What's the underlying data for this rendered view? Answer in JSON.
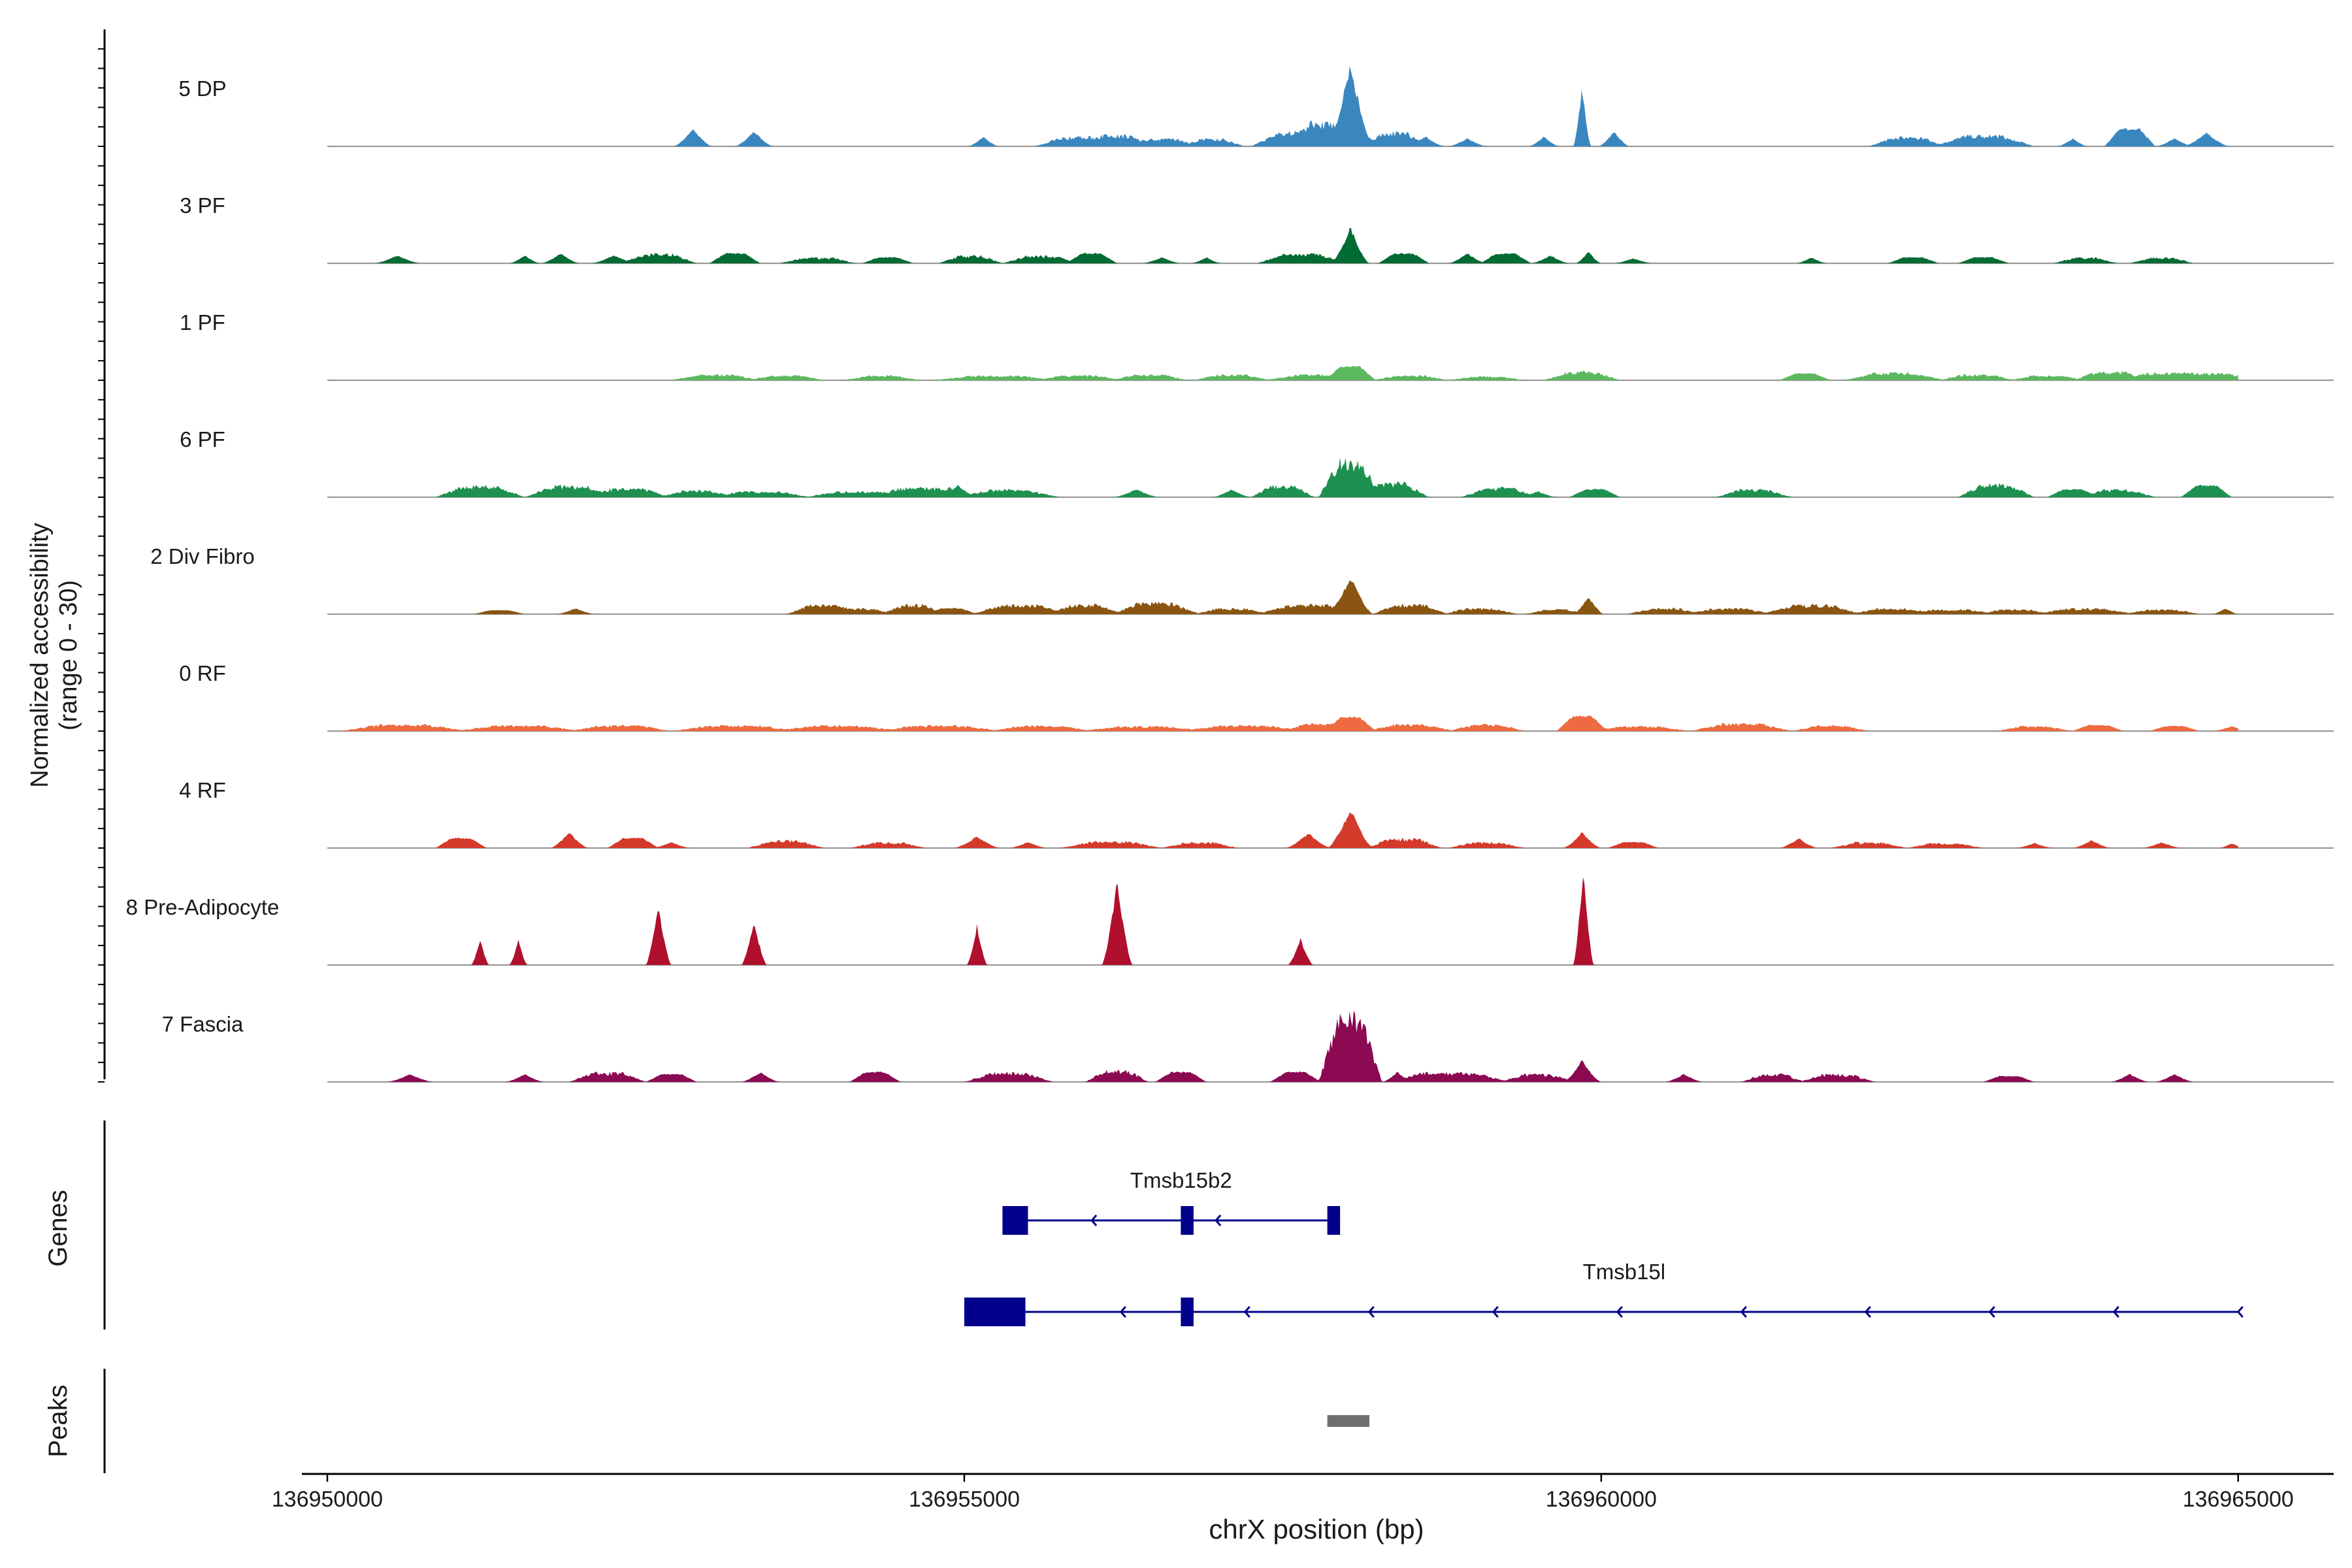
{
  "chart_data": {
    "type": "area",
    "subtype": "genome-coverage-track",
    "title": "",
    "ylabel_lines": [
      "Normalized accessibility",
      "(range 0 - 30)"
    ],
    "xlabel": "chrX position (bp)",
    "xlim": [
      136949800,
      136965750
    ],
    "xticks": [
      136950000,
      136955000,
      136960000,
      136965000
    ],
    "xtick_labels": [
      "136950000",
      "136955000",
      "136960000",
      "136965000"
    ],
    "ylim": [
      0,
      30
    ],
    "baseline_color": "#9a9a9a",
    "tracks": [
      {
        "name": "5 DP",
        "color": "#3a87c0",
        "peaks": [
          [
            136952870,
            0.15,
            18
          ],
          [
            136953350,
            0.15,
            15
          ],
          [
            136955150,
            0.12,
            10
          ],
          [
            136955900,
            0.35,
            10
          ],
          [
            136956200,
            0.3,
            12
          ],
          [
            136956550,
            0.3,
            8
          ],
          [
            136956950,
            0.25,
            8
          ],
          [
            136957600,
            0.35,
            15
          ],
          [
            136957900,
            0.12,
            12
          ],
          [
            136958030,
            0.18,
            85
          ],
          [
            136957870,
            0.4,
            25
          ],
          [
            136958380,
            0.25,
            15
          ],
          [
            136958620,
            0.15,
            10
          ],
          [
            136958950,
            0.15,
            8
          ],
          [
            136959550,
            0.12,
            10
          ],
          [
            136959850,
            0.07,
            60
          ],
          [
            136960100,
            0.12,
            15
          ],
          [
            136962400,
            0.3,
            10
          ],
          [
            136963000,
            0.4,
            12
          ],
          [
            136963700,
            0.12,
            8
          ],
          [
            136964150,
            0.2,
            18
          ],
          [
            136964500,
            0.15,
            8
          ],
          [
            136964750,
            0.18,
            14
          ],
          [
            136965150,
            0.12,
            6
          ]
        ]
      },
      {
        "name": "3 PF",
        "color": "#006b33",
        "peaks": [
          [
            136950550,
            0.18,
            8
          ],
          [
            136951550,
            0.12,
            8
          ],
          [
            136951830,
            0.15,
            10
          ],
          [
            136952250,
            0.18,
            8
          ],
          [
            136952600,
            0.3,
            10
          ],
          [
            136953200,
            0.2,
            10
          ],
          [
            136953850,
            0.3,
            6
          ],
          [
            136954400,
            0.2,
            6
          ],
          [
            136955050,
            0.25,
            8
          ],
          [
            136955600,
            0.3,
            8
          ],
          [
            136956000,
            0.2,
            10
          ],
          [
            136956550,
            0.15,
            6
          ],
          [
            136956900,
            0.12,
            6
          ],
          [
            136957650,
            0.35,
            10
          ],
          [
            136958030,
            0.15,
            37
          ],
          [
            136958450,
            0.2,
            10
          ],
          [
            136958950,
            0.15,
            10
          ],
          [
            136959250,
            0.2,
            10
          ],
          [
            136959600,
            0.15,
            8
          ],
          [
            136959900,
            0.1,
            12
          ],
          [
            136960250,
            0.15,
            5
          ],
          [
            136961650,
            0.12,
            6
          ],
          [
            136962450,
            0.2,
            6
          ],
          [
            136963000,
            0.2,
            6
          ],
          [
            136963800,
            0.25,
            6
          ],
          [
            136964400,
            0.25,
            6
          ]
        ]
      },
      {
        "name": "1 PF",
        "color": "#5cb85f",
        "peaks": [
          [
            136953050,
            0.35,
            6
          ],
          [
            136953600,
            0.3,
            5
          ],
          [
            136954350,
            0.3,
            5
          ],
          [
            136955250,
            0.5,
            5
          ],
          [
            136955900,
            0.35,
            5
          ],
          [
            136956450,
            0.3,
            6
          ],
          [
            136957100,
            0.3,
            6
          ],
          [
            136957800,
            0.45,
            6
          ],
          [
            136958030,
            0.2,
            14
          ],
          [
            136958500,
            0.3,
            5
          ],
          [
            136959100,
            0.3,
            4
          ],
          [
            136959850,
            0.3,
            9
          ],
          [
            136961600,
            0.2,
            7
          ],
          [
            136962300,
            0.4,
            8
          ],
          [
            136962950,
            0.3,
            6
          ],
          [
            136963500,
            0.3,
            5
          ],
          [
            136964000,
            0.3,
            9
          ],
          [
            136964600,
            0.7,
            8
          ]
        ]
      },
      {
        "name": "6 PF",
        "color": "#1e9150",
        "peaks": [
          [
            136951200,
            0.35,
            12
          ],
          [
            136951900,
            0.35,
            12
          ],
          [
            136952350,
            0.35,
            9
          ],
          [
            136952900,
            0.3,
            7
          ],
          [
            136953400,
            0.4,
            6
          ],
          [
            136954150,
            0.4,
            6
          ],
          [
            136954700,
            0.5,
            10
          ],
          [
            136954950,
            0.15,
            12
          ],
          [
            136955350,
            0.4,
            8
          ],
          [
            136956350,
            0.18,
            8
          ],
          [
            136957100,
            0.15,
            8
          ],
          [
            136957500,
            0.25,
            12
          ],
          [
            136958030,
            0.25,
            38
          ],
          [
            136958350,
            0.3,
            15
          ],
          [
            136959200,
            0.3,
            10
          ],
          [
            136959500,
            0.15,
            6
          ],
          [
            136959950,
            0.2,
            8
          ],
          [
            136961200,
            0.3,
            8
          ],
          [
            136963100,
            0.3,
            14
          ],
          [
            136963700,
            0.2,
            8
          ],
          [
            136964050,
            0.3,
            8
          ],
          [
            136964750,
            0.2,
            12
          ]
        ]
      },
      {
        "name": "2 Div Fibro",
        "color": "#8a5510",
        "peaks": [
          [
            136951350,
            0.2,
            4
          ],
          [
            136951950,
            0.15,
            6
          ],
          [
            136953900,
            0.3,
            10
          ],
          [
            136954200,
            0.25,
            6
          ],
          [
            136954600,
            0.25,
            10
          ],
          [
            136954900,
            0.2,
            6
          ],
          [
            136955450,
            0.4,
            10
          ],
          [
            136955950,
            0.3,
            10
          ],
          [
            136956500,
            0.35,
            12
          ],
          [
            136957100,
            0.3,
            6
          ],
          [
            136957700,
            0.4,
            10
          ],
          [
            136958030,
            0.18,
            38
          ],
          [
            136958500,
            0.3,
            10
          ],
          [
            136959050,
            0.3,
            6
          ],
          [
            136959650,
            0.25,
            5
          ],
          [
            136959900,
            0.12,
            18
          ],
          [
            136960500,
            0.3,
            6
          ],
          [
            136961000,
            0.35,
            6
          ],
          [
            136961650,
            0.4,
            10
          ],
          [
            136962300,
            0.35,
            6
          ],
          [
            136962750,
            0.35,
            5
          ],
          [
            136963250,
            0.3,
            5
          ],
          [
            136963800,
            0.4,
            6
          ],
          [
            136964400,
            0.3,
            5
          ],
          [
            136964900,
            0.1,
            6
          ]
        ]
      },
      {
        "name": "0 RF",
        "color": "#ee6a40",
        "peaks": [
          [
            136950600,
            0.5,
            7
          ],
          [
            136951500,
            0.5,
            6
          ],
          [
            136952300,
            0.4,
            6
          ],
          [
            136953200,
            0.5,
            6
          ],
          [
            136954000,
            0.5,
            6
          ],
          [
            136954800,
            0.5,
            6
          ],
          [
            136955600,
            0.4,
            6
          ],
          [
            136956400,
            0.5,
            5
          ],
          [
            136957200,
            0.5,
            6
          ],
          [
            136957800,
            0.3,
            8
          ],
          [
            136958030,
            0.2,
            14
          ],
          [
            136958500,
            0.35,
            7
          ],
          [
            136959100,
            0.3,
            7
          ],
          [
            136959850,
            0.2,
            15
          ],
          [
            136960300,
            0.4,
            5
          ],
          [
            136961100,
            0.4,
            8
          ],
          [
            136961800,
            0.3,
            6
          ],
          [
            136963400,
            0.3,
            5
          ],
          [
            136963900,
            0.2,
            6
          ],
          [
            136964500,
            0.2,
            5
          ],
          [
            136964950,
            0.15,
            5
          ]
        ]
      },
      {
        "name": "4 RF",
        "color": "#d43a2a",
        "peaks": [
          [
            136951050,
            0.2,
            10
          ],
          [
            136951900,
            0.15,
            16
          ],
          [
            136952400,
            0.2,
            10
          ],
          [
            136952700,
            0.15,
            6
          ],
          [
            136953600,
            0.3,
            8
          ],
          [
            136954400,
            0.3,
            6
          ],
          [
            136955100,
            0.18,
            12
          ],
          [
            136955500,
            0.15,
            6
          ],
          [
            136956150,
            0.4,
            7
          ],
          [
            136956850,
            0.3,
            6
          ],
          [
            136957700,
            0.18,
            15
          ],
          [
            136958030,
            0.18,
            40
          ],
          [
            136958450,
            0.3,
            10
          ],
          [
            136959100,
            0.3,
            6
          ],
          [
            136959850,
            0.15,
            16
          ],
          [
            136960250,
            0.2,
            6
          ],
          [
            136961550,
            0.15,
            10
          ],
          [
            136962100,
            0.3,
            6
          ],
          [
            136962700,
            0.3,
            5
          ],
          [
            136963400,
            0.15,
            5
          ],
          [
            136963850,
            0.15,
            8
          ],
          [
            136964400,
            0.15,
            6
          ],
          [
            136964950,
            0.1,
            5
          ]
        ]
      },
      {
        "name": "8 Pre-Adipocyte",
        "color": "#b0102e",
        "peaks": [
          [
            136951200,
            0.07,
            26
          ],
          [
            136951500,
            0.07,
            26
          ],
          [
            136952600,
            0.1,
            60
          ],
          [
            136953350,
            0.1,
            44
          ],
          [
            136955100,
            0.08,
            40
          ],
          [
            136956200,
            0.12,
            85
          ],
          [
            136957640,
            0.1,
            26
          ],
          [
            136959860,
            0.08,
            100
          ]
        ]
      },
      {
        "name": "7 Fascia",
        "color": "#8b0a52",
        "peaks": [
          [
            136950650,
            0.18,
            8
          ],
          [
            136951550,
            0.15,
            8
          ],
          [
            136952200,
            0.3,
            10
          ],
          [
            136952700,
            0.2,
            8
          ],
          [
            136953400,
            0.15,
            10
          ],
          [
            136954300,
            0.2,
            10
          ],
          [
            136955350,
            0.35,
            10
          ],
          [
            136956200,
            0.25,
            12
          ],
          [
            136956700,
            0.2,
            10
          ],
          [
            136957600,
            0.2,
            10
          ],
          [
            136958030,
            0.25,
            70
          ],
          [
            136958400,
            0.12,
            10
          ],
          [
            136958800,
            0.5,
            10
          ],
          [
            136959500,
            0.3,
            8
          ],
          [
            136959850,
            0.15,
            22
          ],
          [
            136960650,
            0.15,
            8
          ],
          [
            136961350,
            0.25,
            8
          ],
          [
            136961850,
            0.3,
            8
          ],
          [
            136963200,
            0.2,
            6
          ],
          [
            136964150,
            0.15,
            8
          ],
          [
            136964500,
            0.15,
            8
          ]
        ]
      }
    ],
    "genes": {
      "label": "Genes",
      "color": "#00008b",
      "items": [
        {
          "name": "Tmsb15b2",
          "strand": "-",
          "start": 136955300,
          "end": 136957950,
          "exons": [
            [
              136955300,
              136955500
            ],
            [
              136956700,
              136956800
            ],
            [
              136957850,
              136957950
            ]
          ]
        },
        {
          "name": "Tmsb15l",
          "strand": "-",
          "start": 136955000,
          "end": 136965000,
          "exons": [
            [
              136955000,
              136955480
            ],
            [
              136956700,
              136956800
            ]
          ]
        }
      ]
    },
    "peaks_track": {
      "label": "Peaks",
      "color": "#6f6f6f",
      "regions": [
        [
          136957850,
          136958180
        ]
      ]
    }
  }
}
